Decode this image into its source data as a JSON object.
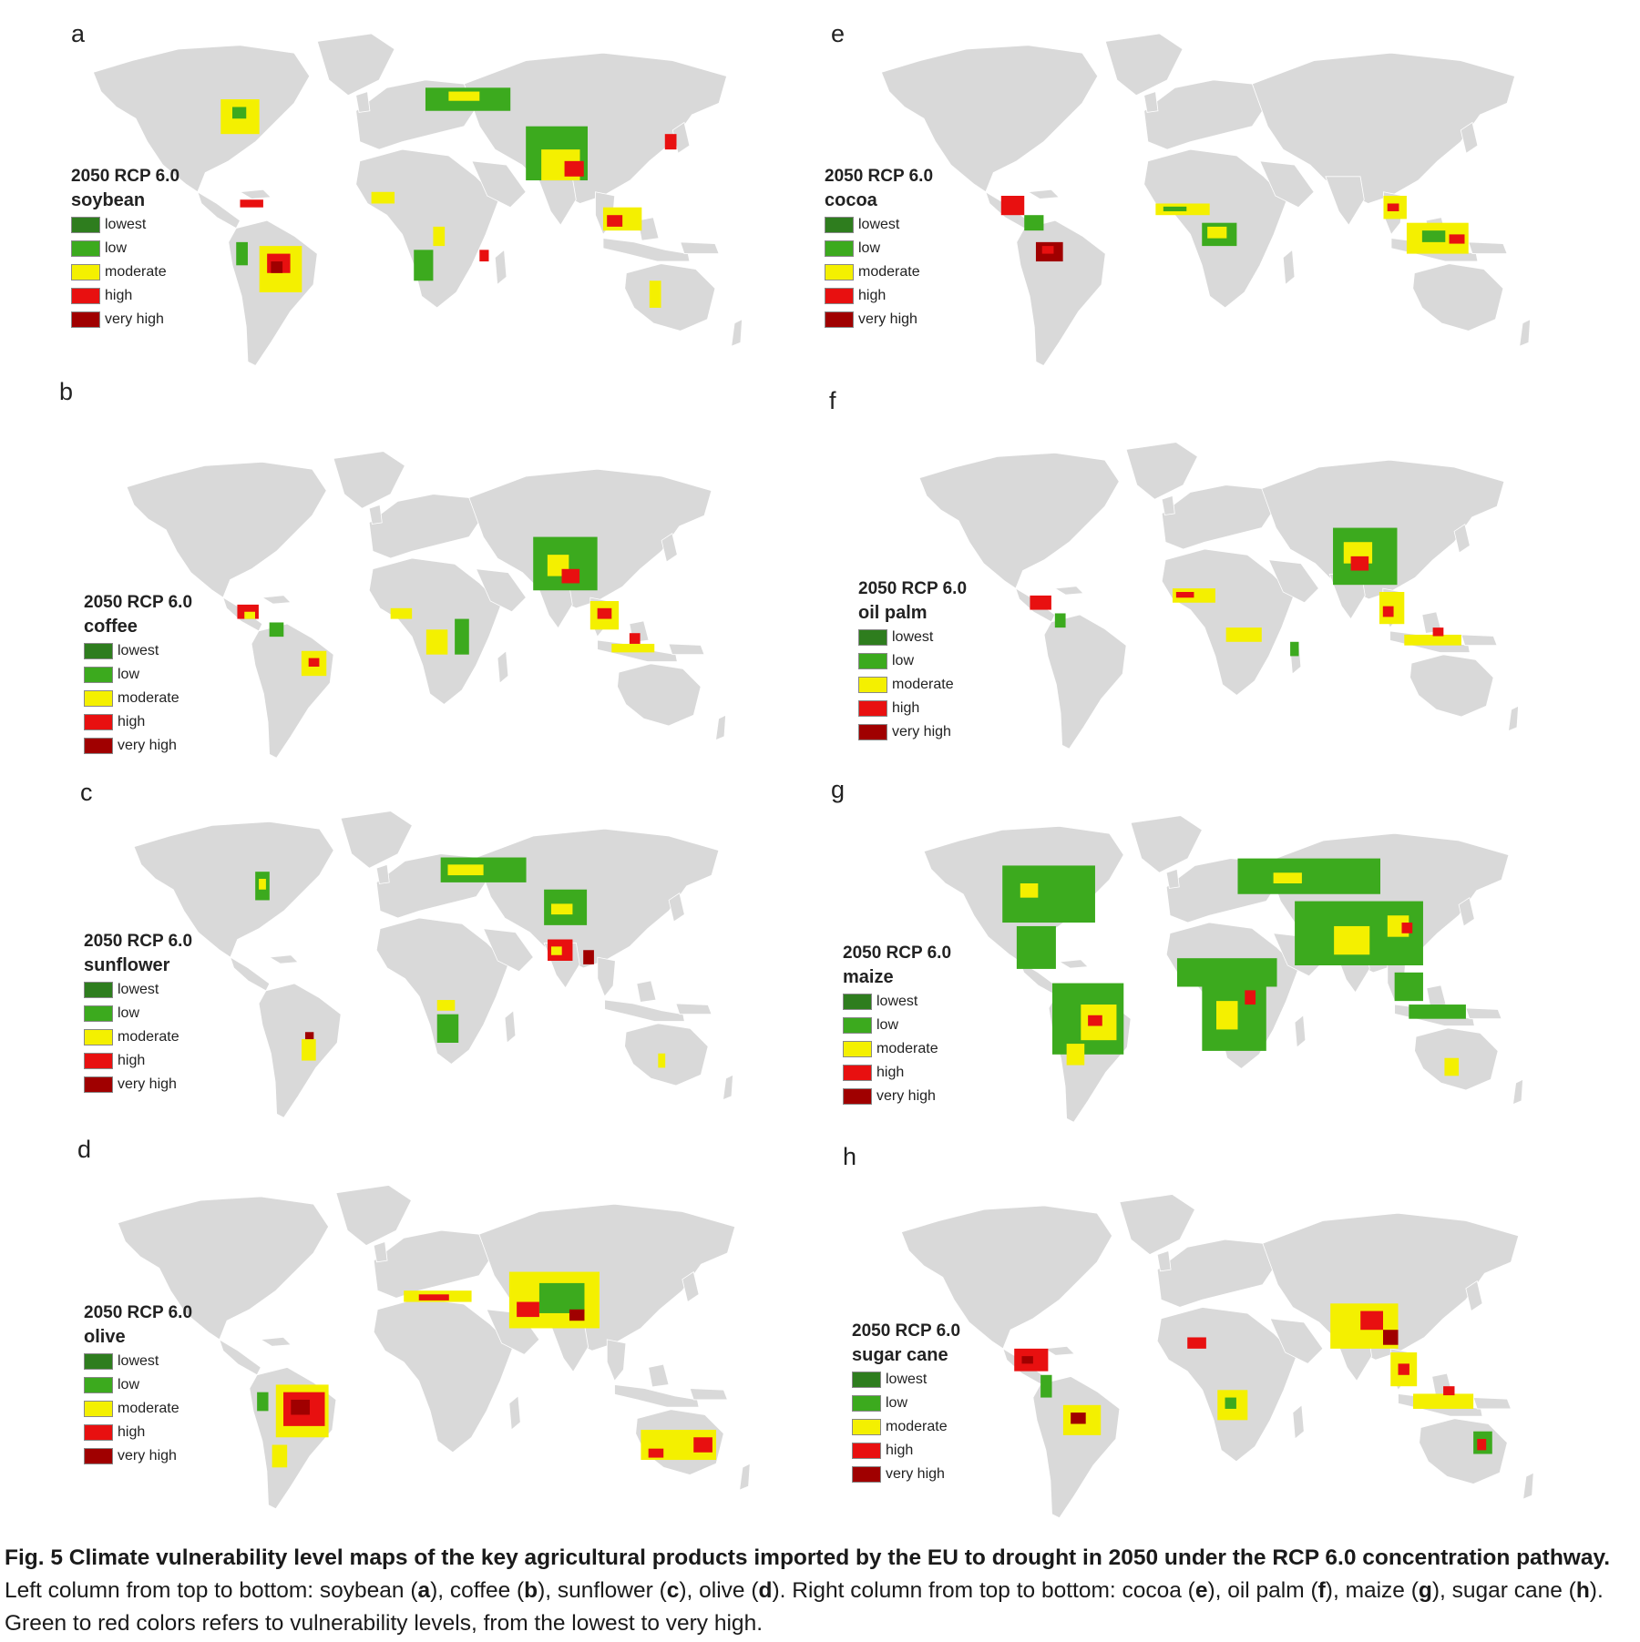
{
  "legend": {
    "scenario": "2050 RCP 6.0",
    "levels": [
      {
        "label": "lowest",
        "color": "#2e7d1e"
      },
      {
        "label": "low",
        "color": "#3caa1e"
      },
      {
        "label": "moderate",
        "color": "#f4f000"
      },
      {
        "label": "high",
        "color": "#e81010"
      },
      {
        "label": "very high",
        "color": "#a00000"
      }
    ]
  },
  "colors": {
    "land": "#d9d9d9",
    "border": "#ffffff",
    "ocean": "#ffffff"
  },
  "panels": [
    {
      "letter": "a",
      "crop": "soybean"
    },
    {
      "letter": "b",
      "crop": "coffee"
    },
    {
      "letter": "c",
      "crop": "sunflower"
    },
    {
      "letter": "d",
      "crop": "olive"
    },
    {
      "letter": "e",
      "crop": "cocoa"
    },
    {
      "letter": "f",
      "crop": "oil palm"
    },
    {
      "letter": "g",
      "crop": "maize"
    },
    {
      "letter": "h",
      "crop": "sugar cane"
    }
  ],
  "caption": {
    "figure_label": "Fig. 5",
    "bold": "Climate vulnerability level maps of the key agricultural products imported by the EU to drought in 2050 under the RCP 6.0 concentration pathway.",
    "p1": " Left column from top to bottom: soybean (",
    "p2": "), coffee (",
    "p3": "), sunflower (",
    "p4": "), olive (",
    "p5": "). Right column from top to bottom: cocoa (",
    "p6": "), oil palm (",
    "p7": "), maize (",
    "p8": "), sugar cane (",
    "p9": "). Green to red colors refers to vulnerability levels, from the lowest to very high.",
    "l_a": "a",
    "l_b": "b",
    "l_c": "c",
    "l_d": "d",
    "l_e": "e",
    "l_f": "f",
    "l_g": "g",
    "l_h": "h"
  }
}
